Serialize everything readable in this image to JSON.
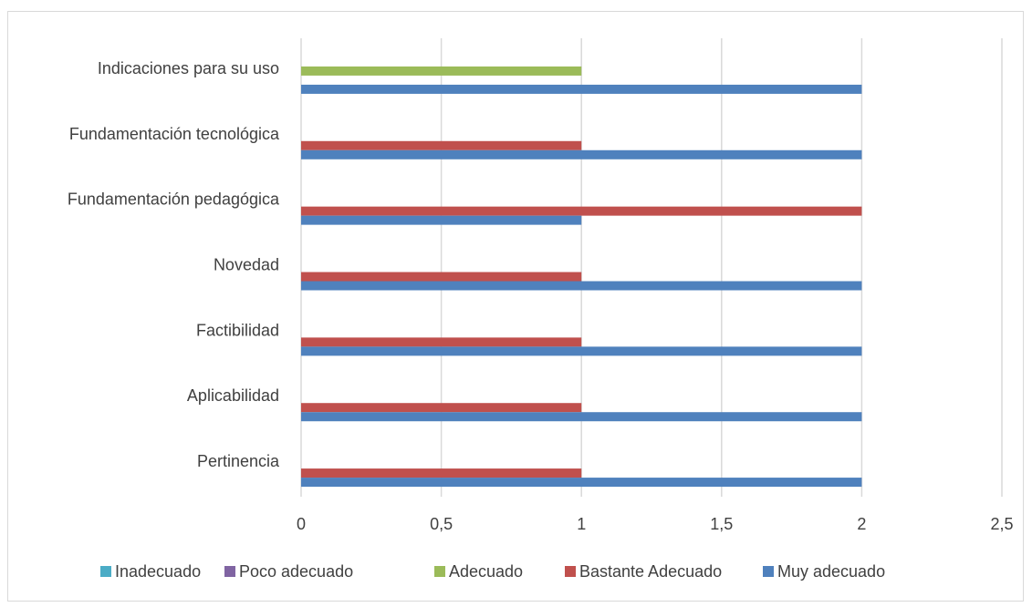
{
  "chart_data": {
    "type": "bar",
    "orientation": "horizontal",
    "title": "",
    "xlabel": "",
    "ylabel": "",
    "xlim": [
      0,
      2.5
    ],
    "x_ticks": [
      "0",
      "0,5",
      "1",
      "1,5",
      "2",
      "2,5"
    ],
    "grid": "vertical",
    "legend_position": "bottom",
    "categories": [
      "Pertinencia",
      "Aplicabilidad",
      "Factibilidad",
      "Novedad",
      "Fundamentación pedagógica",
      "Fundamentación tecnológica",
      "Indicaciones para su uso"
    ],
    "series": [
      {
        "name": "Inadecuado",
        "color": "#4bacc6",
        "values": [
          0,
          0,
          0,
          0,
          0,
          0,
          0
        ]
      },
      {
        "name": "Poco adecuado",
        "color": "#8064a2",
        "values": [
          0,
          0,
          0,
          0,
          0,
          0,
          0
        ]
      },
      {
        "name": "Adecuado",
        "color": "#9bbb59",
        "values": [
          0,
          0,
          0,
          0,
          0,
          0,
          1
        ]
      },
      {
        "name": "Bastante Adecuado",
        "color": "#c0504d",
        "values": [
          1,
          1,
          1,
          1,
          2,
          1,
          0
        ]
      },
      {
        "name": "Muy adecuado",
        "color": "#4f81bd",
        "values": [
          2,
          2,
          2,
          2,
          1,
          2,
          2
        ]
      }
    ]
  }
}
